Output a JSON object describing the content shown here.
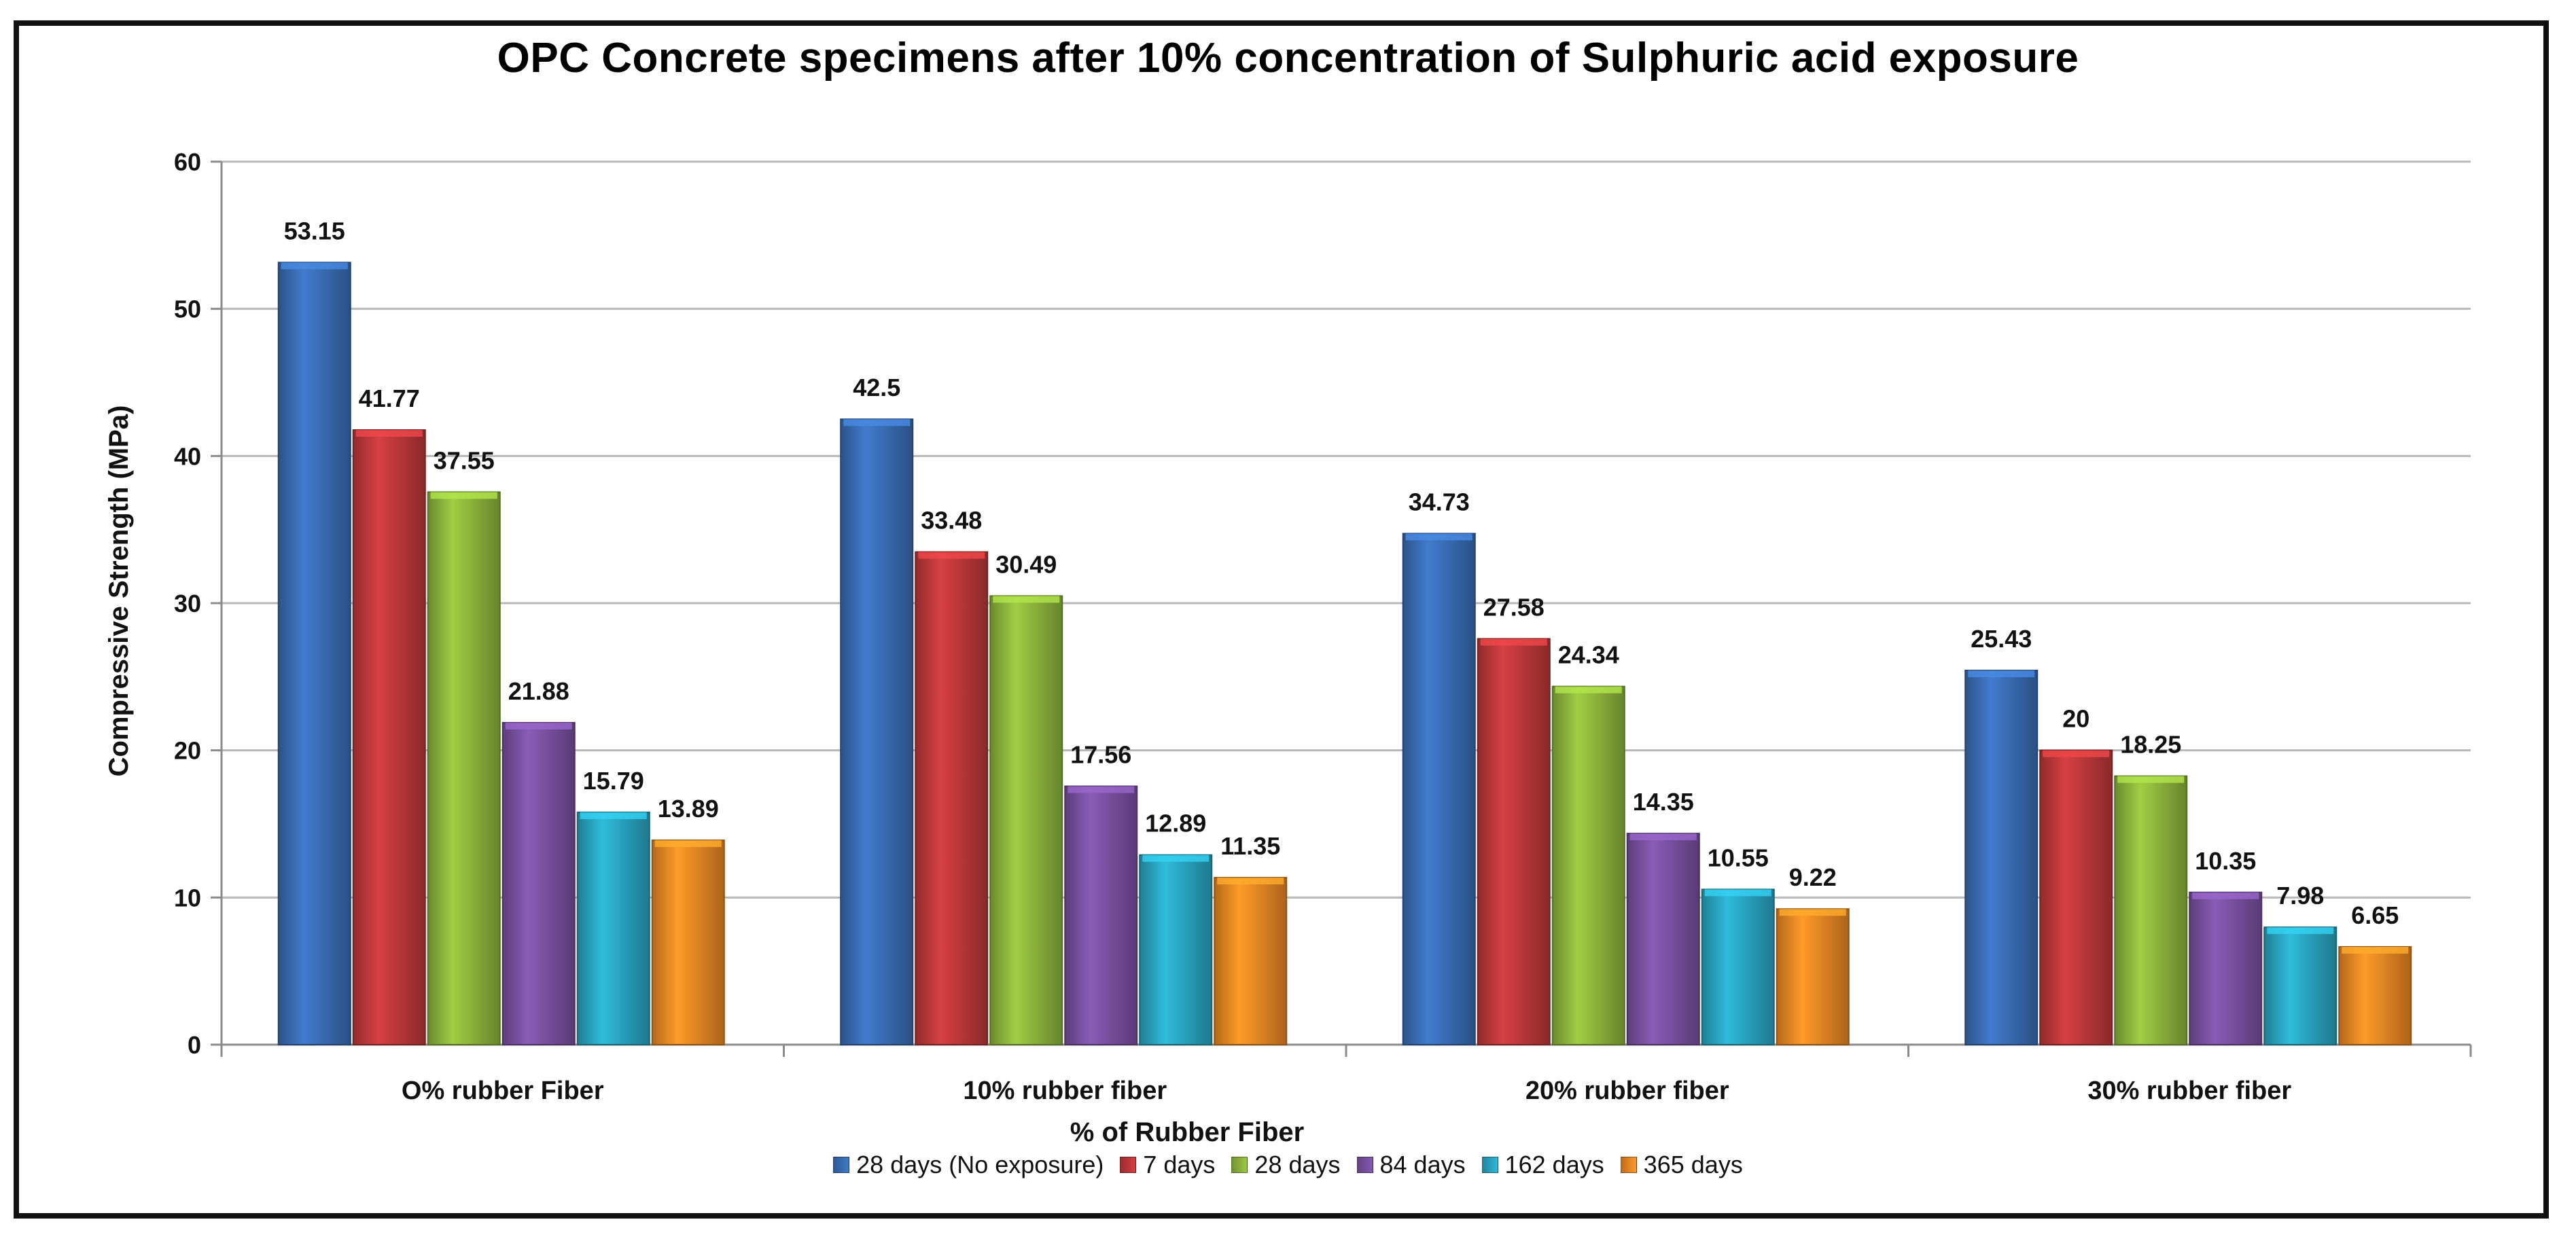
{
  "chart_data": {
    "type": "bar",
    "title": "OPC Concrete specimens after 10% concentration of Sulphuric acid exposure",
    "xlabel": "% of Rubber Fiber",
    "ylabel": "Compressive Strength  (MPa)",
    "ylim": [
      0,
      60
    ],
    "yticks": [
      0,
      10,
      20,
      30,
      40,
      50,
      60
    ],
    "grid": true,
    "legend_position": "bottom",
    "categories": [
      "O% rubber Fiber",
      "10% rubber fiber",
      "20% rubber fiber",
      "30% rubber fiber"
    ],
    "series": [
      {
        "name": "28 days (No exposure)",
        "color": "#3a6fb7",
        "values": [
          53.15,
          42.5,
          34.73,
          25.43
        ]
      },
      {
        "name": "7 days",
        "color": "#c0393b",
        "values": [
          41.77,
          33.48,
          27.58,
          20
        ]
      },
      {
        "name": "28 days",
        "color": "#8fb83d",
        "values": [
          37.55,
          30.49,
          24.34,
          18.25
        ]
      },
      {
        "name": "84 days",
        "color": "#7b52a3",
        "values": [
          21.88,
          17.56,
          14.35,
          10.35
        ]
      },
      {
        "name": "162 days",
        "color": "#2aa8c4",
        "values": [
          15.79,
          12.89,
          10.55,
          7.98
        ]
      },
      {
        "name": "365 days",
        "color": "#f08a24",
        "values": [
          13.89,
          11.35,
          9.22,
          6.65
        ]
      }
    ]
  }
}
